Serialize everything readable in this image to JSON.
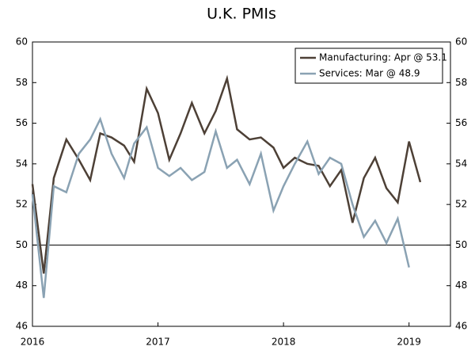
{
  "chart_data": {
    "type": "line",
    "title": "U.K. PMIs",
    "x": [
      2016.0,
      2016.09,
      2016.17,
      2016.27,
      2016.37,
      2016.46,
      2016.54,
      2016.63,
      2016.73,
      2016.81,
      2016.91,
      2017.0,
      2017.09,
      2017.18,
      2017.27,
      2017.37,
      2017.46,
      2017.55,
      2017.63,
      2017.73,
      2017.82,
      2017.92,
      2018.0,
      2018.09,
      2018.19,
      2018.28,
      2018.37,
      2018.46,
      2018.55,
      2018.64,
      2018.73,
      2018.82,
      2018.91,
      2019.0,
      2019.09
    ],
    "series": [
      {
        "name": "Manufacturing: Apr @ 53.1",
        "color": "#4d4036",
        "values": [
          53.0,
          48.6,
          53.3,
          55.2,
          54.2,
          53.2,
          55.5,
          55.3,
          54.9,
          54.1,
          57.7,
          56.5,
          54.2,
          55.5,
          57.0,
          55.5,
          56.6,
          58.2,
          55.7,
          55.2,
          55.3,
          54.8,
          53.8,
          54.3,
          54.0,
          53.9,
          52.9,
          53.7,
          51.1,
          53.3,
          54.3,
          52.8,
          52.1,
          55.1,
          53.1
        ]
      },
      {
        "name": "Services: Mar @ 48.9",
        "color": "#8aa2b3",
        "values": [
          52.5,
          47.4,
          52.9,
          52.6,
          54.5,
          55.2,
          56.2,
          54.5,
          53.3,
          55.0,
          55.8,
          53.8,
          53.4,
          53.8,
          53.2,
          53.6,
          55.6,
          53.8,
          54.2,
          53.0,
          54.5,
          51.7,
          52.9,
          54.0,
          55.1,
          53.5,
          54.3,
          54.0,
          52.0,
          50.4,
          51.2,
          50.1,
          51.3,
          48.9,
          null
        ]
      }
    ],
    "xlim": [
      2016,
      2019.33
    ],
    "xticks": [
      2016,
      2017,
      2018,
      2019
    ],
    "ylim": [
      46,
      60
    ],
    "yticks": [
      46,
      48,
      50,
      52,
      54,
      56,
      58,
      60
    ],
    "y2lim": [
      46,
      60
    ],
    "y2ticks": [
      46,
      48,
      50,
      52,
      54,
      56,
      58,
      60
    ],
    "hline": 50,
    "legend": "top-right"
  }
}
